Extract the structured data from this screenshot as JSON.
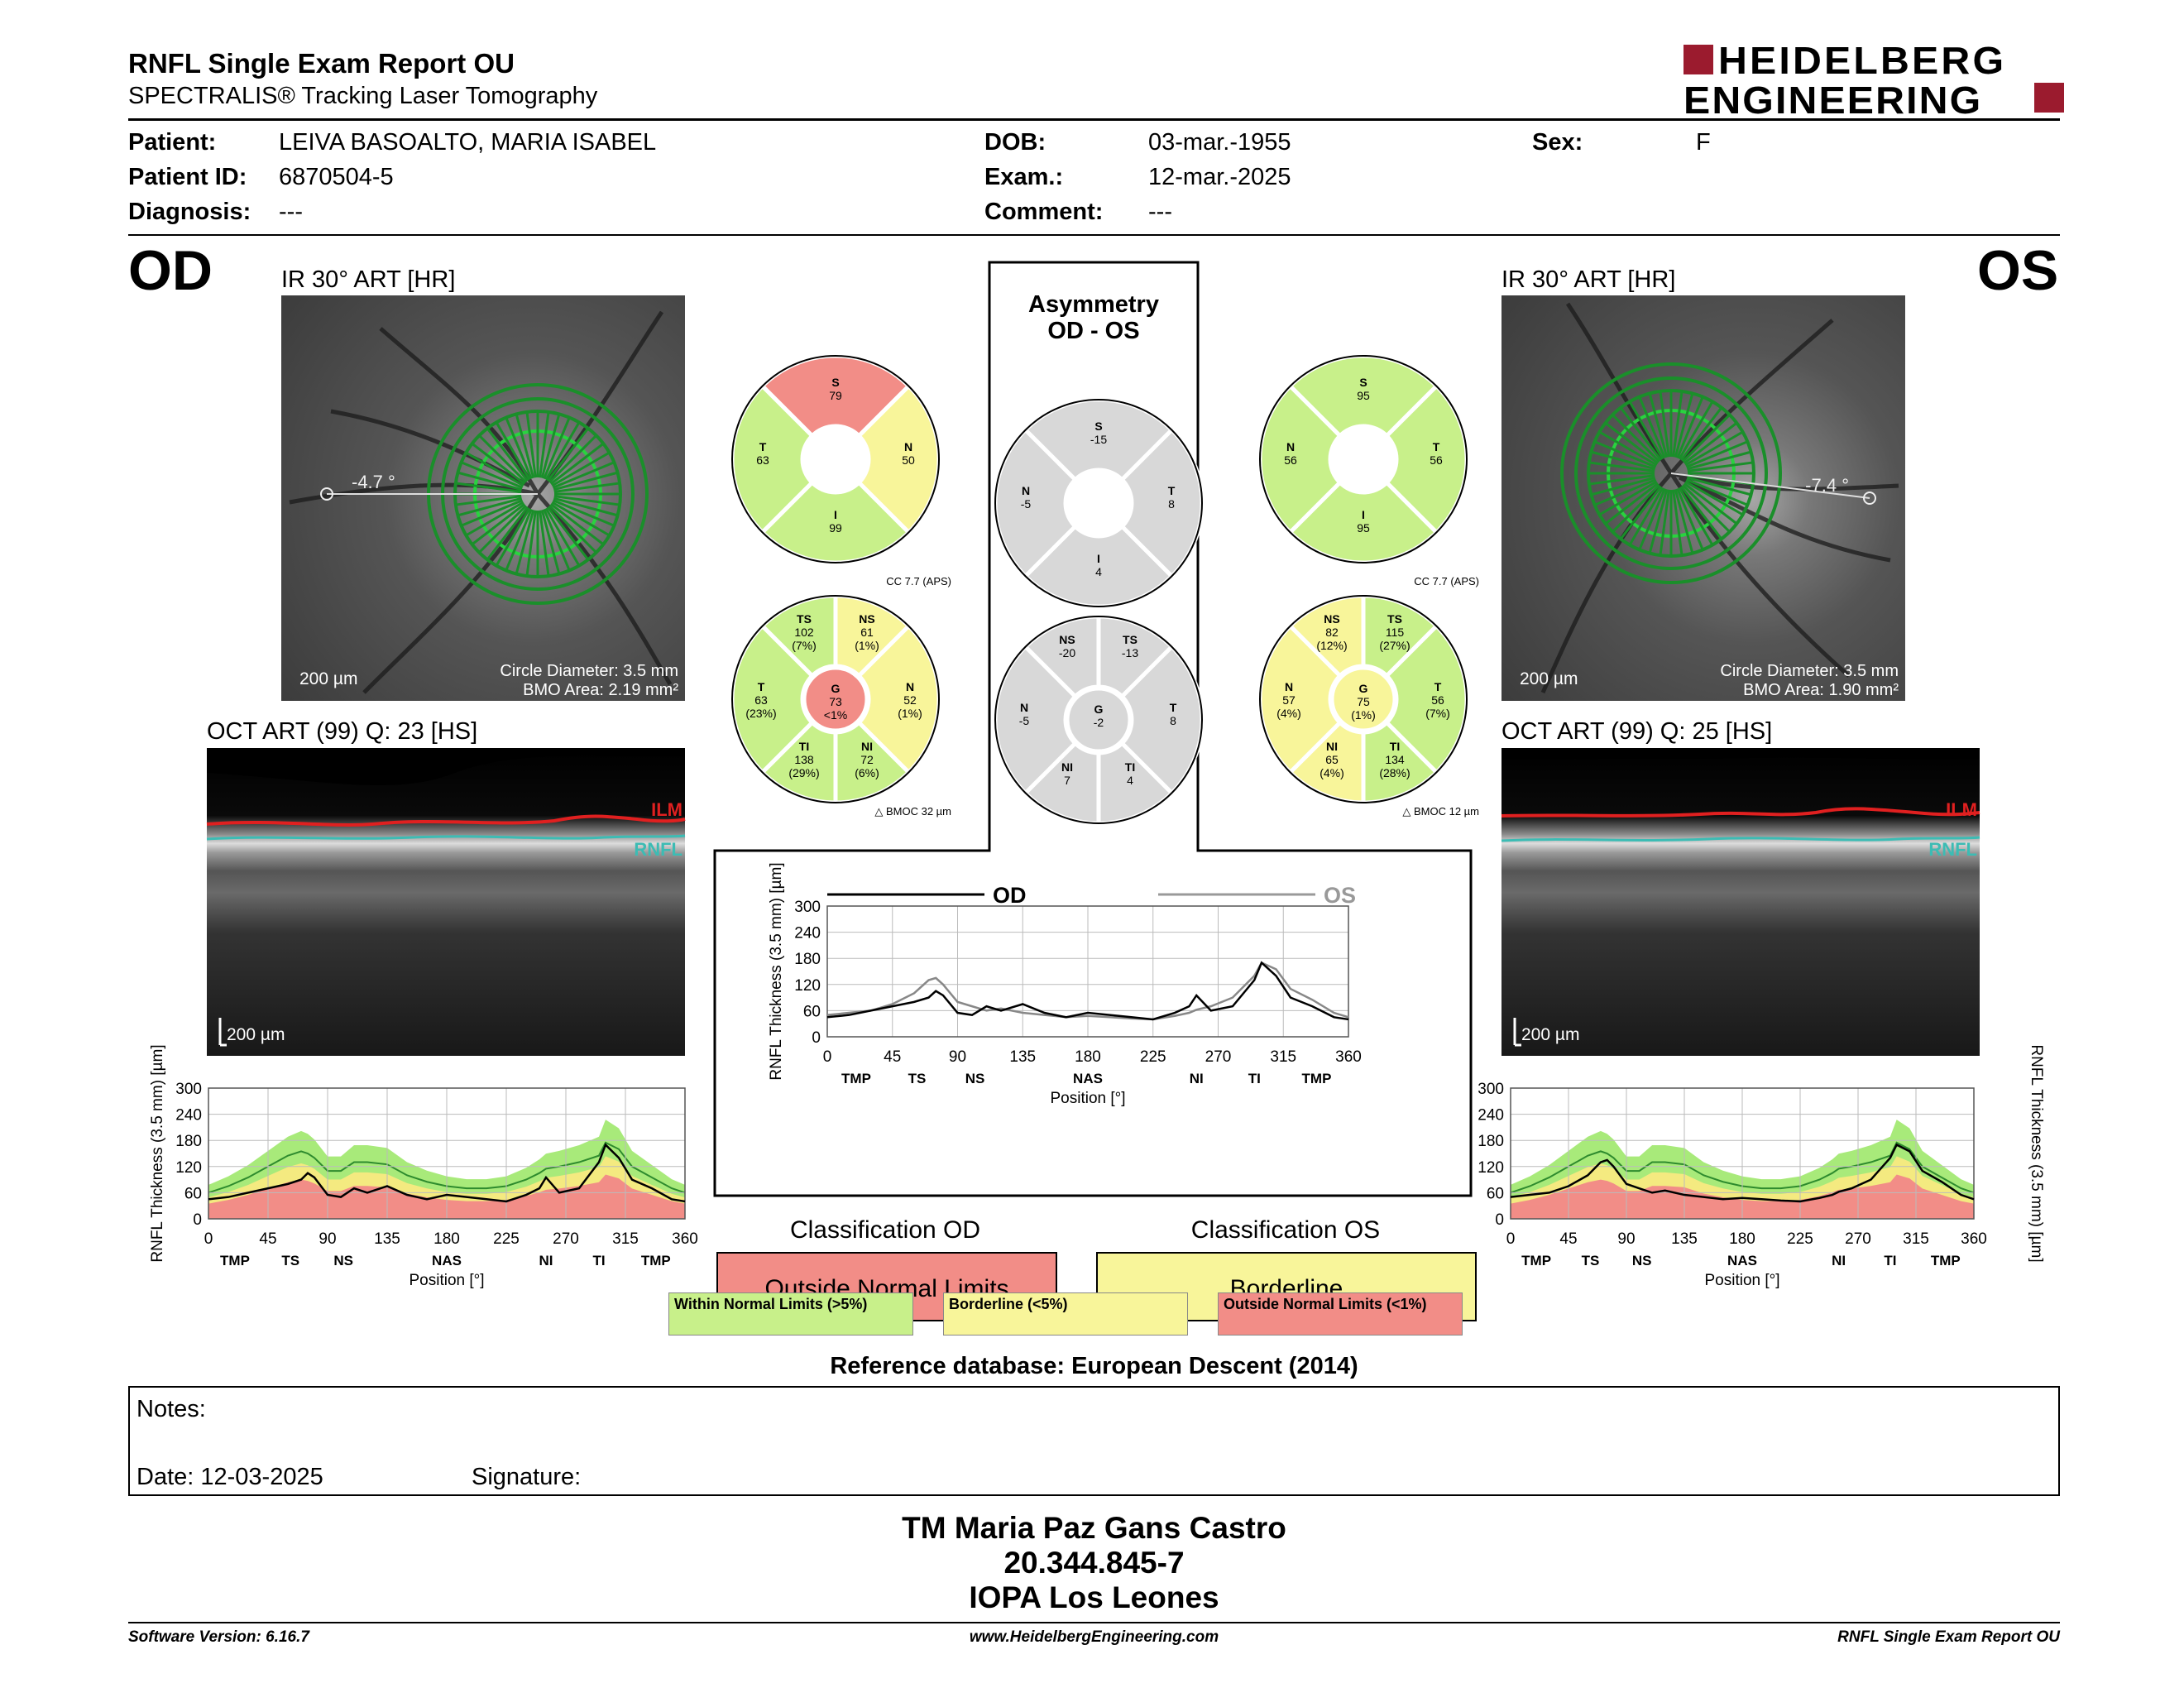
{
  "header": {
    "title": "RNFL Single Exam Report OU",
    "subtitle": "SPECTRALIS® Tracking Laser Tomography",
    "logo_line1": "HEIDELBERG",
    "logo_line2": "ENGINEERING",
    "brand_color": "#9b1b2e"
  },
  "patient": {
    "patient_label": "Patient:",
    "patient_value": "LEIVA BASOALTO, MARIA ISABEL",
    "id_label": "Patient ID:",
    "id_value": "6870504-5",
    "diag_label": "Diagnosis:",
    "diag_value": "---",
    "dob_label": "DOB:",
    "dob_value": "03-mar.-1955",
    "exam_label": "Exam.:",
    "exam_value": "12-mar.-2025",
    "comment_label": "Comment:",
    "comment_value": "---",
    "sex_label": "Sex:",
    "sex_value": "F"
  },
  "od": {
    "eye": "OD",
    "ir_title": "IR 30° ART [HR]",
    "angle": "-4.7 °",
    "scale": "200 µm",
    "circle_diameter": "Circle Diameter: 3.5 mm",
    "bmo_area": "BMO Area: 2.19 mm²",
    "oct_title": "OCT ART (99) Q: 23 [HS]",
    "oct_scale": "200 µm",
    "ilm": "ILM",
    "rnfl": "RNFL"
  },
  "os": {
    "eye": "OS",
    "ir_title": "IR 30° ART [HR]",
    "angle": "-7.4 °",
    "scale": "200 µm",
    "circle_diameter": "Circle Diameter: 3.5 mm",
    "bmo_area": "BMO Area: 1.90 mm²",
    "oct_title": "OCT ART (99) Q: 25 [HS]",
    "oct_scale": "200 µm",
    "ilm": "ILM",
    "rnfl": "RNFL"
  },
  "sectors": {
    "od4": {
      "S": "79",
      "T": "63",
      "N": "50",
      "I": "99"
    },
    "os4": {
      "S": "95",
      "N": "56",
      "T": "56",
      "I": "95"
    },
    "asym4": {
      "S": "-15",
      "N": "-5",
      "T": "8",
      "I": "4"
    },
    "od6": {
      "TS": [
        "102",
        "(7%)"
      ],
      "NS": [
        "61",
        "(1%)"
      ],
      "T": [
        "63",
        "(23%)"
      ],
      "G": [
        "73",
        "<1%"
      ],
      "N": [
        "52",
        "(1%)"
      ],
      "TI": [
        "138",
        "(29%)"
      ],
      "NI": [
        "72",
        "(6%)"
      ],
      "cc": "CC 7.7 (APS)",
      "bmoc": "BMOC 32 µm"
    },
    "os6": {
      "NS": [
        "82",
        "(12%)"
      ],
      "TS": [
        "115",
        "(27%)"
      ],
      "N": [
        "57",
        "(4%)"
      ],
      "G": [
        "75",
        "(1%)"
      ],
      "T": [
        "56",
        "(7%)"
      ],
      "NI": [
        "65",
        "(4%)"
      ],
      "TI": [
        "134",
        "(28%)"
      ],
      "cc": "CC 7.7 (APS)",
      "bmoc": "BMOC 12 µm"
    },
    "asym6": {
      "NS": "-20",
      "TS": "-13",
      "N": "-5",
      "G": "-2",
      "T": "8",
      "NI": "7",
      "TI": "4"
    },
    "colors": {
      "green": "#c8f08a",
      "yellow": "#f8f59a",
      "red": "#f28d87",
      "gray": "#d8d8d8"
    }
  },
  "asymmetry": {
    "title1": "Asymmetry",
    "title2": "OD - OS",
    "legend_od": "OD",
    "legend_os": "OS"
  },
  "chart_data": [
    {
      "type": "line",
      "id": "od_profile",
      "xlabel": "Position [°]",
      "ylabel": "RNFL Thickness (3.5 mm) [µm]",
      "xlim": [
        0,
        360
      ],
      "ylim": [
        0,
        300
      ],
      "xticks": [
        "0",
        "45",
        "90",
        "135",
        "180",
        "225",
        "270",
        "315",
        "360"
      ],
      "yticks": [
        "0",
        "60",
        "120",
        "180",
        "240",
        "300"
      ],
      "sector_labels": [
        {
          "x": 20,
          "t": "TMP"
        },
        {
          "x": 62,
          "t": "TS"
        },
        {
          "x": 102,
          "t": "NS"
        },
        {
          "x": 180,
          "t": "NAS"
        },
        {
          "x": 255,
          "t": "NI"
        },
        {
          "x": 295,
          "t": "TI"
        },
        {
          "x": 338,
          "t": "TMP"
        }
      ],
      "x": [
        0,
        15,
        30,
        45,
        60,
        70,
        75,
        80,
        90,
        100,
        110,
        120,
        135,
        150,
        165,
        180,
        195,
        210,
        225,
        240,
        250,
        255,
        265,
        280,
        295,
        300,
        310,
        320,
        335,
        350,
        360
      ],
      "series": [
        {
          "name": "OD",
          "values": [
            45,
            50,
            60,
            70,
            80,
            90,
            105,
            95,
            55,
            50,
            70,
            60,
            75,
            55,
            45,
            55,
            50,
            45,
            40,
            55,
            70,
            95,
            60,
            70,
            130,
            170,
            140,
            90,
            70,
            45,
            40
          ]
        },
        {
          "name": "normal_mean",
          "values": [
            60,
            75,
            95,
            120,
            145,
            155,
            150,
            140,
            110,
            110,
            130,
            130,
            125,
            100,
            85,
            75,
            70,
            70,
            75,
            90,
            105,
            115,
            120,
            130,
            145,
            175,
            160,
            120,
            95,
            70,
            60
          ]
        }
      ]
    },
    {
      "type": "line",
      "id": "asymmetry_profile",
      "xlabel": "Position [°]",
      "ylabel": "RNFL Thickness (3.5 mm) [µm]",
      "xlim": [
        0,
        360
      ],
      "ylim": [
        0,
        300
      ],
      "xticks": [
        "0",
        "45",
        "90",
        "135",
        "180",
        "225",
        "270",
        "315",
        "360"
      ],
      "yticks": [
        "0",
        "60",
        "120",
        "180",
        "240",
        "300"
      ],
      "sector_labels": [
        {
          "x": 20,
          "t": "TMP"
        },
        {
          "x": 62,
          "t": "TS"
        },
        {
          "x": 102,
          "t": "NS"
        },
        {
          "x": 180,
          "t": "NAS"
        },
        {
          "x": 255,
          "t": "NI"
        },
        {
          "x": 295,
          "t": "TI"
        },
        {
          "x": 338,
          "t": "TMP"
        }
      ],
      "x": [
        0,
        15,
        30,
        45,
        60,
        70,
        75,
        80,
        90,
        100,
        110,
        120,
        135,
        150,
        165,
        180,
        195,
        210,
        225,
        240,
        250,
        255,
        265,
        280,
        295,
        300,
        310,
        320,
        335,
        350,
        360
      ],
      "series": [
        {
          "name": "OD",
          "values": [
            45,
            50,
            60,
            70,
            80,
            90,
            105,
            95,
            55,
            50,
            70,
            60,
            75,
            55,
            45,
            55,
            50,
            45,
            40,
            55,
            70,
            95,
            60,
            70,
            130,
            170,
            140,
            90,
            70,
            45,
            40
          ]
        },
        {
          "name": "OS",
          "values": [
            50,
            55,
            60,
            75,
            100,
            130,
            135,
            120,
            80,
            70,
            60,
            65,
            55,
            50,
            45,
            48,
            45,
            42,
            40,
            48,
            55,
            62,
            70,
            90,
            140,
            170,
            155,
            110,
            85,
            55,
            45
          ]
        }
      ]
    },
    {
      "type": "line",
      "id": "os_profile",
      "xlabel": "Position [°]",
      "ylabel": "RNFL Thickness (3.5 mm) [µm]",
      "xlim": [
        0,
        360
      ],
      "ylim": [
        0,
        300
      ],
      "xticks": [
        "0",
        "45",
        "90",
        "135",
        "180",
        "225",
        "270",
        "315",
        "360"
      ],
      "yticks": [
        "0",
        "60",
        "120",
        "180",
        "240",
        "300"
      ],
      "sector_labels": [
        {
          "x": 20,
          "t": "TMP"
        },
        {
          "x": 62,
          "t": "TS"
        },
        {
          "x": 102,
          "t": "NS"
        },
        {
          "x": 180,
          "t": "NAS"
        },
        {
          "x": 255,
          "t": "NI"
        },
        {
          "x": 295,
          "t": "TI"
        },
        {
          "x": 338,
          "t": "TMP"
        }
      ],
      "x": [
        0,
        15,
        30,
        45,
        60,
        70,
        75,
        80,
        90,
        100,
        110,
        120,
        135,
        150,
        165,
        180,
        195,
        210,
        225,
        240,
        250,
        255,
        265,
        280,
        295,
        300,
        310,
        320,
        335,
        350,
        360
      ],
      "series": [
        {
          "name": "OS",
          "values": [
            50,
            55,
            60,
            75,
            100,
            130,
            135,
            120,
            80,
            70,
            60,
            65,
            55,
            50,
            45,
            48,
            45,
            42,
            40,
            48,
            55,
            62,
            70,
            90,
            140,
            170,
            155,
            110,
            85,
            55,
            45
          ]
        },
        {
          "name": "normal_mean",
          "values": [
            60,
            75,
            95,
            120,
            145,
            155,
            150,
            140,
            110,
            110,
            130,
            130,
            125,
            100,
            85,
            75,
            70,
            70,
            75,
            90,
            105,
            115,
            120,
            130,
            145,
            175,
            160,
            120,
            95,
            70,
            60
          ]
        }
      ]
    }
  ],
  "classification": {
    "od_title": "Classification OD",
    "od_result": "Outside Normal Limits",
    "od_color": "#f28d87",
    "os_title": "Classification OS",
    "os_result": "Borderline",
    "os_color": "#f8f59a",
    "legend_wnl": "Within Normal Limits (>5%)",
    "legend_bl": "Borderline (<5%)",
    "legend_onl": "Outside Normal Limits (<1%)"
  },
  "reference": "Reference database: European Descent (2014)",
  "notes": {
    "label": "Notes:",
    "date": "Date: 12-03-2025",
    "signature": "Signature:"
  },
  "signer": {
    "name": "TM Maria Paz Gans Castro",
    "id": "20.344.845-7",
    "institution": "IOPA Los Leones"
  },
  "footer": {
    "software": "Software Version: 6.16.7",
    "website": "www.HeidelbergEngineering.com",
    "report": "RNFL Single Exam Report OU"
  }
}
